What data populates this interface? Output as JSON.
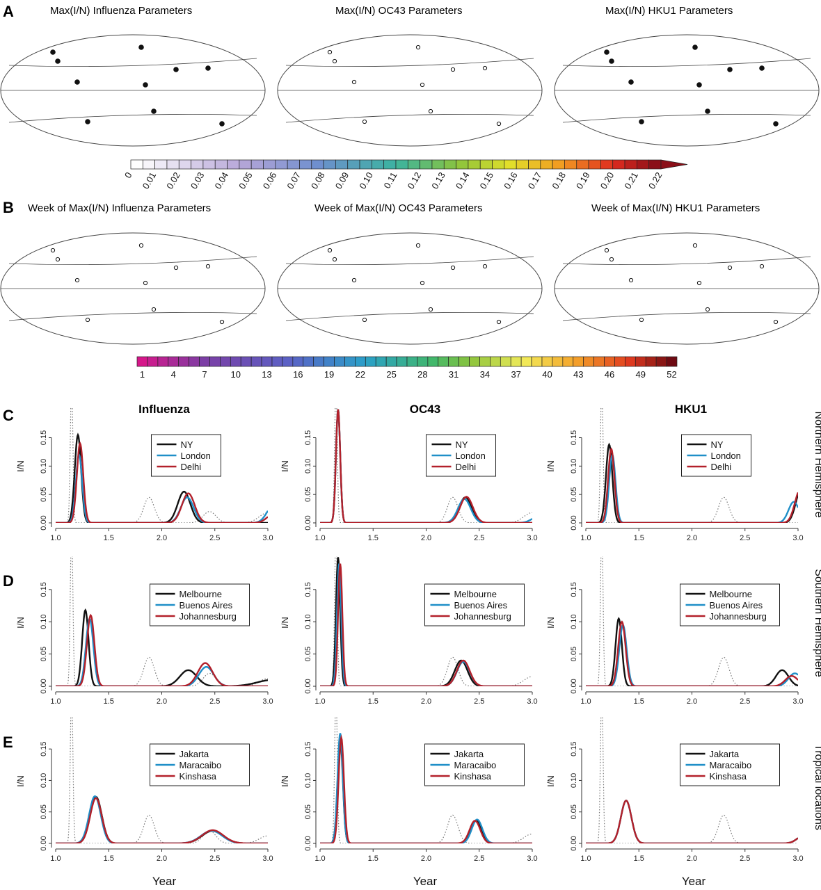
{
  "panel_labels": [
    "A",
    "B",
    "C",
    "D",
    "E"
  ],
  "colors": {
    "black": "#111111",
    "blue": "#1f8fc8",
    "red": "#b3202a",
    "dotted": "#777777"
  },
  "maps_a": {
    "titles": [
      "Max(I/N) Influenza Parameters",
      "Max(I/N) OC43 Parameters",
      "Max(I/N) HKU1 Parameters"
    ],
    "colorbar_ticks": [
      "0",
      "0.01",
      "0.02",
      "0.03",
      "0.04",
      "0.05",
      "0.06",
      "0.07",
      "0.08",
      "0.09",
      "0.10",
      "0.11",
      "0.12",
      "0.13",
      "0.14",
      "0.15",
      "0.16",
      "0.17",
      "0.18",
      "0.19",
      "0.20",
      "0.21",
      "0.22"
    ]
  },
  "maps_b": {
    "titles": [
      "Week of Max(I/N) Influenza Parameters",
      "Week of Max(I/N) OC43 Parameters",
      "Week of Max(I/N) HKU1 Parameters"
    ],
    "colorbar_ticks": [
      "1",
      "4",
      "7",
      "10",
      "13",
      "16",
      "19",
      "22",
      "25",
      "28",
      "31",
      "34",
      "37",
      "40",
      "43",
      "46",
      "49",
      "52"
    ]
  },
  "column_titles": [
    "Influenza",
    "OC43",
    "HKU1"
  ],
  "row_labels": [
    "Northern Hemisphere",
    "Southern Hemisphere",
    "Tropical locations"
  ],
  "chart_data": {
    "type": "line",
    "xlabel": "Year",
    "ylabel": "I/N",
    "xlim": [
      1.0,
      3.0
    ],
    "ylim": [
      0,
      0.18
    ],
    "x_ticks": [
      "1.0",
      "1.5",
      "2.0",
      "2.5",
      "3.0"
    ],
    "y_ticks": [
      "0.00",
      "0.05",
      "0.10",
      "0.15"
    ],
    "rows": [
      {
        "label": "C",
        "legend": [
          "NY",
          "London",
          "Delhi"
        ],
        "panels": [
          {
            "column": "Influenza",
            "series": [
              {
                "name": "NY",
                "peaks": [
                  [
                    1.21,
                    0.155,
                    0.03
                  ],
                  [
                    2.21,
                    0.055,
                    0.06
                  ]
                ]
              },
              {
                "name": "London",
                "peaks": [
                  [
                    1.22,
                    0.12,
                    0.03
                  ],
                  [
                    2.24,
                    0.045,
                    0.06
                  ],
                  [
                    3.05,
                    0.03,
                    0.06
                  ]
                ]
              },
              {
                "name": "Delhi",
                "peaks": [
                  [
                    1.23,
                    0.14,
                    0.03
                  ],
                  [
                    2.25,
                    0.052,
                    0.06
                  ],
                  [
                    3.05,
                    0.015,
                    0.06
                  ]
                ]
              }
            ],
            "dotted": [
              [
                1.15,
                0.25,
                0.012
              ],
              [
                1.88,
                0.045,
                0.05
              ],
              [
                2.45,
                0.02,
                0.06
              ],
              [
                3.0,
                0.018,
                0.08
              ]
            ]
          },
          {
            "column": "OC43",
            "series": [
              {
                "name": "NY",
                "peaks": [
                  [
                    1.17,
                    0.2,
                    0.02
                  ],
                  [
                    2.37,
                    0.045,
                    0.06
                  ]
                ]
              },
              {
                "name": "London",
                "peaks": [
                  [
                    1.17,
                    0.2,
                    0.02
                  ],
                  [
                    2.36,
                    0.042,
                    0.06
                  ],
                  [
                    3.05,
                    0.01,
                    0.06
                  ]
                ]
              },
              {
                "name": "Delhi",
                "peaks": [
                  [
                    1.17,
                    0.2,
                    0.02
                  ],
                  [
                    2.38,
                    0.046,
                    0.06
                  ]
                ]
              }
            ],
            "dotted": [
              [
                1.15,
                0.25,
                0.012
              ],
              [
                2.25,
                0.045,
                0.05
              ],
              [
                3.0,
                0.018,
                0.08
              ]
            ]
          },
          {
            "column": "HKU1",
            "series": [
              {
                "name": "NY",
                "peaks": [
                  [
                    1.22,
                    0.138,
                    0.03
                  ],
                  [
                    3.03,
                    0.06,
                    0.05
                  ]
                ]
              },
              {
                "name": "London",
                "peaks": [
                  [
                    1.25,
                    0.12,
                    0.03
                  ],
                  [
                    2.96,
                    0.037,
                    0.05
                  ]
                ]
              },
              {
                "name": "Delhi",
                "peaks": [
                  [
                    1.24,
                    0.13,
                    0.03
                  ],
                  [
                    3.02,
                    0.058,
                    0.05
                  ]
                ]
              }
            ],
            "dotted": [
              [
                1.15,
                0.25,
                0.012
              ],
              [
                2.3,
                0.045,
                0.05
              ]
            ]
          }
        ]
      },
      {
        "label": "D",
        "legend": [
          "Melbourne",
          "Buenos Aires",
          "Johannesburg"
        ],
        "panels": [
          {
            "column": "Influenza",
            "series": [
              {
                "name": "Melbourne",
                "peaks": [
                  [
                    1.28,
                    0.118,
                    0.03
                  ],
                  [
                    2.25,
                    0.025,
                    0.08
                  ],
                  [
                    3.05,
                    0.01,
                    0.15
                  ]
                ]
              },
              {
                "name": "Buenos Aires",
                "peaks": [
                  [
                    1.32,
                    0.105,
                    0.035
                  ],
                  [
                    2.42,
                    0.03,
                    0.07
                  ]
                ]
              },
              {
                "name": "Johannesburg",
                "peaks": [
                  [
                    1.33,
                    0.11,
                    0.035
                  ],
                  [
                    2.41,
                    0.036,
                    0.07
                  ]
                ]
              }
            ],
            "dotted": [
              [
                1.15,
                0.25,
                0.012
              ],
              [
                1.88,
                0.045,
                0.05
              ],
              [
                2.45,
                0.02,
                0.06
              ],
              [
                3.0,
                0.012,
                0.08
              ]
            ]
          },
          {
            "column": "OC43",
            "series": [
              {
                "name": "Melbourne",
                "peaks": [
                  [
                    1.17,
                    0.2,
                    0.02
                  ],
                  [
                    2.33,
                    0.04,
                    0.06
                  ]
                ]
              },
              {
                "name": "Buenos Aires",
                "peaks": [
                  [
                    1.18,
                    0.19,
                    0.02
                  ],
                  [
                    2.35,
                    0.038,
                    0.06
                  ]
                ]
              },
              {
                "name": "Johannesburg",
                "peaks": [
                  [
                    1.19,
                    0.19,
                    0.02
                  ],
                  [
                    2.35,
                    0.04,
                    0.06
                  ]
                ]
              }
            ],
            "dotted": [
              [
                1.15,
                0.25,
                0.012
              ],
              [
                2.25,
                0.045,
                0.05
              ],
              [
                3.0,
                0.015,
                0.08
              ]
            ]
          },
          {
            "column": "HKU1",
            "series": [
              {
                "name": "Melbourne",
                "peaks": [
                  [
                    1.31,
                    0.105,
                    0.03
                  ],
                  [
                    2.85,
                    0.025,
                    0.06
                  ]
                ]
              },
              {
                "name": "Buenos Aires",
                "peaks": [
                  [
                    1.35,
                    0.095,
                    0.035
                  ],
                  [
                    2.97,
                    0.02,
                    0.06
                  ]
                ]
              },
              {
                "name": "Johannesburg",
                "peaks": [
                  [
                    1.34,
                    0.1,
                    0.035
                  ],
                  [
                    2.94,
                    0.016,
                    0.06
                  ]
                ]
              }
            ],
            "dotted": [
              [
                1.15,
                0.25,
                0.012
              ],
              [
                2.3,
                0.045,
                0.05
              ]
            ]
          }
        ]
      },
      {
        "label": "E",
        "legend": [
          "Jakarta",
          "Maracaibo",
          "Kinshasa"
        ],
        "panels": [
          {
            "column": "Influenza",
            "series": [
              {
                "name": "Jakarta",
                "peaks": [
                  [
                    1.38,
                    0.074,
                    0.055
                  ],
                  [
                    2.48,
                    0.02,
                    0.1
                  ]
                ]
              },
              {
                "name": "Maracaibo",
                "peaks": [
                  [
                    1.37,
                    0.075,
                    0.055
                  ],
                  [
                    2.47,
                    0.02,
                    0.1
                  ]
                ]
              },
              {
                "name": "Kinshasa",
                "peaks": [
                  [
                    1.38,
                    0.072,
                    0.055
                  ],
                  [
                    2.48,
                    0.021,
                    0.1
                  ]
                ]
              }
            ],
            "dotted": [
              [
                1.15,
                0.25,
                0.012
              ],
              [
                1.88,
                0.045,
                0.05
              ],
              [
                2.45,
                0.02,
                0.06
              ],
              [
                3.0,
                0.012,
                0.08
              ]
            ]
          },
          {
            "column": "OC43",
            "series": [
              {
                "name": "Jakarta",
                "peaks": [
                  [
                    1.19,
                    0.165,
                    0.025
                  ],
                  [
                    2.47,
                    0.036,
                    0.05
                  ]
                ]
              },
              {
                "name": "Maracaibo",
                "peaks": [
                  [
                    1.19,
                    0.175,
                    0.025
                  ],
                  [
                    2.48,
                    0.038,
                    0.05
                  ]
                ]
              },
              {
                "name": "Kinshasa",
                "peaks": [
                  [
                    1.2,
                    0.168,
                    0.025
                  ],
                  [
                    2.46,
                    0.036,
                    0.05
                  ]
                ]
              }
            ],
            "dotted": [
              [
                1.15,
                0.25,
                0.012
              ],
              [
                2.25,
                0.045,
                0.05
              ],
              [
                3.0,
                0.015,
                0.08
              ]
            ]
          },
          {
            "column": "HKU1",
            "series": [
              {
                "name": "Jakarta",
                "peaks": [
                  [
                    1.38,
                    0.068,
                    0.05
                  ],
                  [
                    3.05,
                    0.012,
                    0.06
                  ]
                ]
              },
              {
                "name": "Maracaibo",
                "peaks": [
                  [
                    1.38,
                    0.068,
                    0.05
                  ],
                  [
                    3.05,
                    0.012,
                    0.06
                  ]
                ]
              },
              {
                "name": "Kinshasa",
                "peaks": [
                  [
                    1.38,
                    0.068,
                    0.05
                  ],
                  [
                    3.05,
                    0.012,
                    0.06
                  ]
                ]
              }
            ],
            "dotted": [
              [
                1.15,
                0.25,
                0.012
              ],
              [
                2.3,
                0.045,
                0.05
              ]
            ]
          }
        ]
      }
    ]
  }
}
